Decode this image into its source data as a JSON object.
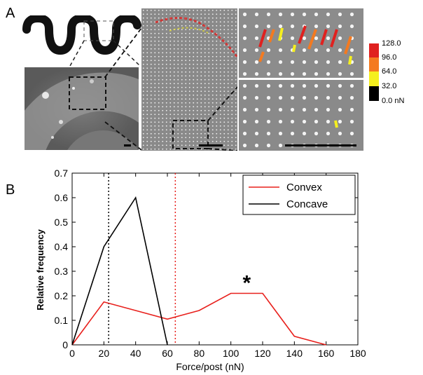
{
  "panel_a": {
    "label": "A",
    "colorbar": {
      "ticks": [
        "128.0",
        "96.0",
        "64.0",
        "32.0",
        "0.0 nN"
      ],
      "colors": [
        "#e0211f",
        "#f47a20",
        "#f5ef1e",
        "#000000"
      ]
    }
  },
  "panel_b": {
    "label": "B"
  },
  "chart_data": {
    "type": "line",
    "title": "",
    "xlabel": "Force/post (nN)",
    "ylabel": "Relative frequency",
    "xlim": [
      0,
      180
    ],
    "ylim": [
      0,
      0.7
    ],
    "xticks": [
      0,
      20,
      40,
      60,
      80,
      100,
      120,
      140,
      160,
      180
    ],
    "yticks": [
      0,
      0.1,
      0.2,
      0.3,
      0.4,
      0.5,
      0.6,
      0.7
    ],
    "legend_position": "top-right",
    "grid": false,
    "series": [
      {
        "name": "Convex",
        "color": "#e8201c",
        "x": [
          0,
          20,
          40,
          60,
          80,
          100,
          120,
          140,
          160
        ],
        "y": [
          0,
          0.175,
          0.14,
          0.105,
          0.14,
          0.21,
          0.21,
          0.035,
          0
        ]
      },
      {
        "name": "Concave",
        "color": "#000000",
        "x": [
          0,
          20,
          40,
          60
        ],
        "y": [
          0,
          0.4,
          0.6,
          0
        ]
      }
    ],
    "vlines": [
      {
        "x": 23,
        "color": "#000000",
        "style": "dotted"
      },
      {
        "x": 65,
        "color": "#e8201c",
        "style": "dotted"
      }
    ],
    "annotations": [
      {
        "text": "*",
        "x": 110,
        "y": 0.265
      }
    ]
  }
}
